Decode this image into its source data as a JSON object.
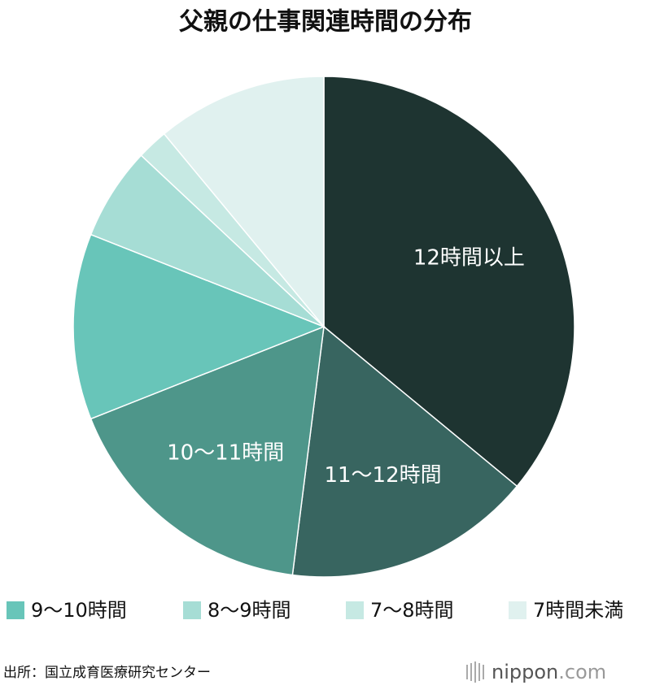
{
  "chart_data": {
    "type": "pie",
    "title": "父親の仕事関連時間の分布",
    "categories": [
      "12時間以上",
      "11〜12時間",
      "10〜11時間",
      "9〜10時間",
      "8〜9時間",
      "7〜8時間",
      "7時間未満"
    ],
    "values": [
      36,
      16,
      17,
      12,
      6,
      2,
      11
    ],
    "colors": [
      "#1e3431",
      "#386560",
      "#4e968a",
      "#68c5b9",
      "#a6ddd5",
      "#c6e9e3",
      "#e0f1ef"
    ],
    "label_inside": [
      true,
      true,
      true,
      false,
      false,
      false,
      false
    ],
    "source": "出所：国立成育医療研究センター",
    "logo": {
      "name": "nippon",
      "suffix": ".com"
    }
  }
}
